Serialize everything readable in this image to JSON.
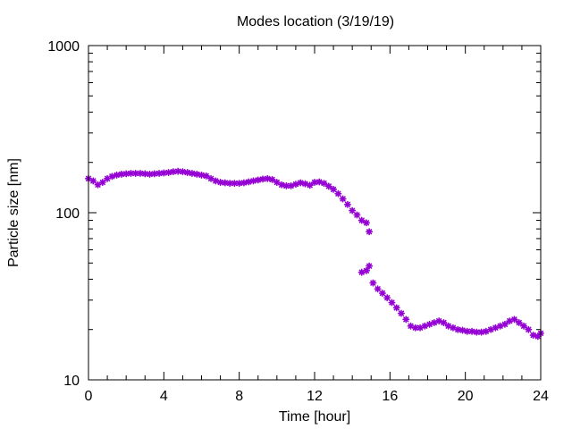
{
  "chart_data": {
    "type": "scatter",
    "title": "Modes location (3/19/19)",
    "xlabel": "Time [hour]",
    "ylabel": "Particle size [nm]",
    "xlim": [
      0,
      24
    ],
    "ylim": [
      10,
      1000
    ],
    "yscale": "log",
    "grid": false,
    "legend": "none",
    "x_ticks": [
      0,
      4,
      8,
      12,
      16,
      20,
      24
    ],
    "x_tick_labels": [
      "0",
      "4",
      "8",
      "12",
      "16",
      "20",
      "24"
    ],
    "y_ticks": [
      10,
      100,
      1000
    ],
    "y_tick_labels": [
      "10",
      "100",
      "1000"
    ],
    "series": [
      {
        "color": "#9400d3",
        "marker": "star",
        "x": [
          0,
          0.25,
          0.5,
          0.75,
          1,
          1.25,
          1.5,
          1.75,
          2,
          2.25,
          2.5,
          2.75,
          3,
          3.25,
          3.5,
          3.75,
          4,
          4.25,
          4.5,
          4.75,
          5,
          5.25,
          5.5,
          5.75,
          6,
          6.25,
          6.5,
          6.75,
          7,
          7.25,
          7.5,
          7.75,
          8,
          8.25,
          8.5,
          8.75,
          9,
          9.25,
          9.5,
          9.75,
          10,
          10.25,
          10.5,
          10.75,
          11,
          11.25,
          11.5,
          11.75,
          12,
          12.25,
          12.5,
          12.75,
          13,
          13.25,
          13.5,
          13.75,
          14,
          14.25,
          14.5,
          14.75,
          14.9,
          14.5,
          14.75,
          14.9,
          15.1,
          15.35,
          15.6,
          15.85,
          16.1,
          16.35,
          16.6,
          16.85,
          17.1,
          17.35,
          17.6,
          17.85,
          18.1,
          18.35,
          18.6,
          18.85,
          19.1,
          19.35,
          19.6,
          19.85,
          20.1,
          20.35,
          20.6,
          20.85,
          21.1,
          21.35,
          21.6,
          21.85,
          22.1,
          22.35,
          22.6,
          22.85,
          23.1,
          23.35,
          23.6,
          23.85,
          24
        ],
        "y": [
          160,
          155,
          147,
          152,
          160,
          165,
          168,
          170,
          171,
          172,
          172,
          172,
          171,
          170,
          171,
          172,
          173,
          174,
          176,
          177,
          176,
          174,
          172,
          170,
          168,
          166,
          160,
          155,
          152,
          151,
          150,
          150,
          150,
          151,
          153,
          155,
          157,
          159,
          160,
          158,
          152,
          147,
          145,
          145,
          148,
          151,
          149,
          146,
          152,
          153,
          150,
          144,
          138,
          130,
          121,
          112,
          103,
          97,
          90,
          87,
          77,
          44,
          45,
          48,
          38,
          35,
          33,
          31,
          29,
          27,
          25,
          23,
          21,
          20.5,
          20.5,
          21,
          21.5,
          22,
          22.5,
          22,
          21,
          20.5,
          20,
          19.8,
          19.5,
          19.5,
          19.3,
          19.3,
          19.5,
          20,
          20.5,
          21,
          21.5,
          22.5,
          23,
          22,
          21,
          20,
          18.5,
          18.2,
          19
        ]
      }
    ]
  }
}
